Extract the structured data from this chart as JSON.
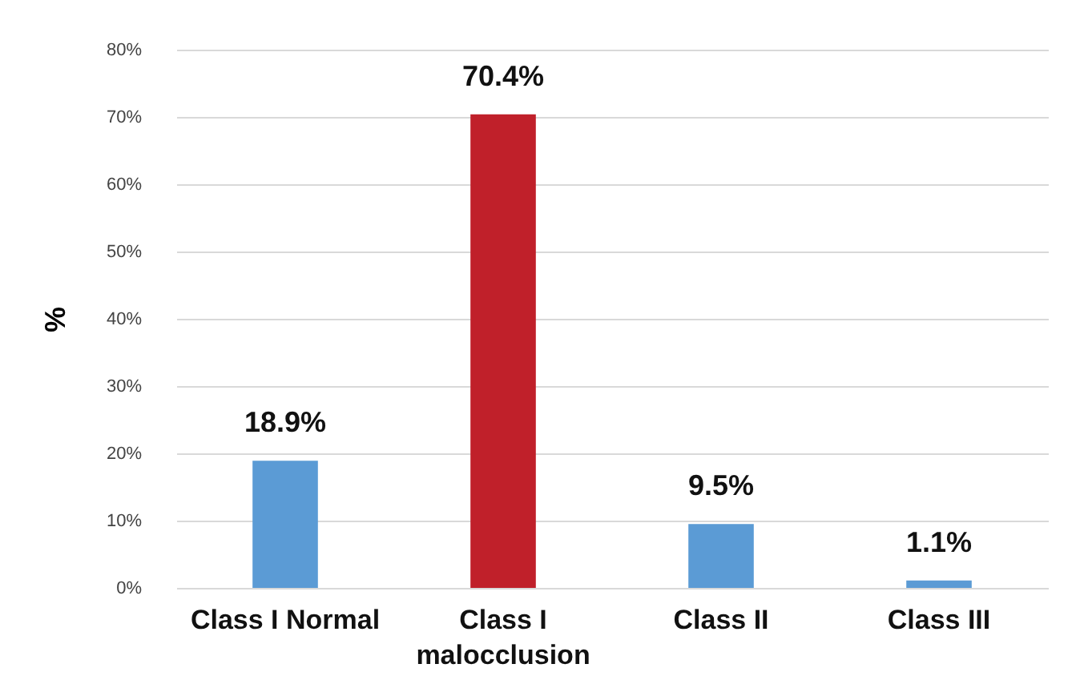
{
  "chart_data": {
    "type": "bar",
    "ylabel": "%",
    "categories": [
      "Class I Normal",
      "Class I malocclusion",
      "Class II",
      "Class III"
    ],
    "values": [
      18.9,
      70.4,
      9.5,
      1.1
    ],
    "colors": [
      "#5b9bd5",
      "#c0202a",
      "#5b9bd5",
      "#5b9bd5"
    ],
    "value_labels": [
      "18.9%",
      "70.4%",
      "9.5%",
      "1.1%"
    ],
    "ylim": [
      0,
      80
    ],
    "yticks": [
      {
        "value": 0,
        "label": "0%"
      },
      {
        "value": 10,
        "label": "10%"
      },
      {
        "value": 20,
        "label": "20%"
      },
      {
        "value": 30,
        "label": "30%"
      },
      {
        "value": 40,
        "label": "40%"
      },
      {
        "value": 50,
        "label": "50%"
      },
      {
        "value": 60,
        "label": "60%"
      },
      {
        "value": 70,
        "label": "70%"
      },
      {
        "value": 80,
        "label": "80%"
      }
    ],
    "grid": "y"
  }
}
